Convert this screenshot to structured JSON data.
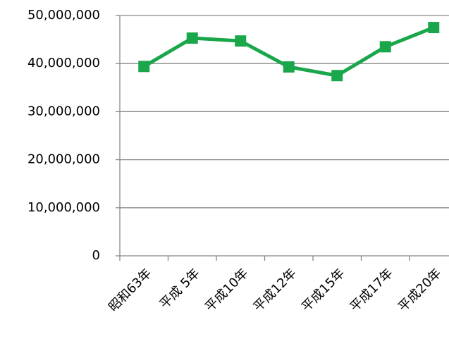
{
  "chart_data": {
    "type": "line",
    "categories": [
      "昭和63年",
      "平成 5年",
      "平成10年",
      "平成12年",
      "平成15年",
      "平成17年",
      "平成20年"
    ],
    "series": [
      {
        "name": "series",
        "color": "#1aa64a",
        "values": [
          39400000,
          45300000,
          44700000,
          39300000,
          37500000,
          43500000,
          47500000
        ]
      }
    ],
    "ylim": [
      0,
      50000000
    ],
    "yticks": [
      0,
      {
        "value": 10000000,
        "label": "10,000,000"
      },
      {
        "value": 20000000,
        "label": "20,000,000"
      },
      {
        "value": 30000000,
        "label": "30,000,000"
      },
      {
        "value": 40000000,
        "label": "40,000,000"
      },
      {
        "value": 50000000,
        "label": "50,000,000"
      }
    ],
    "grid": true
  }
}
